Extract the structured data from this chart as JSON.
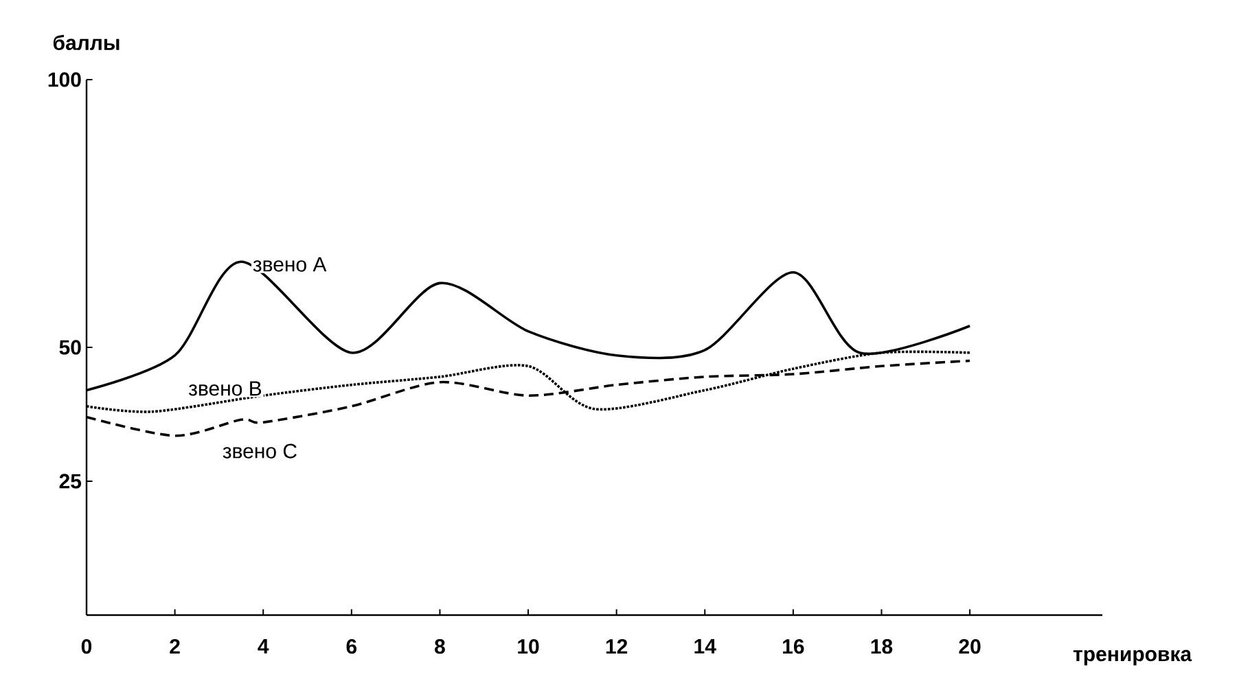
{
  "chart_data": {
    "type": "line",
    "xlabel": "тренировка",
    "ylabel": "баллы",
    "xlim": [
      0,
      23
    ],
    "xticks": [
      0,
      2,
      4,
      6,
      8,
      10,
      12,
      14,
      16,
      18,
      20
    ],
    "ylim": [
      0,
      100
    ],
    "yticks": [
      25,
      50,
      100
    ],
    "grid": false,
    "legend": false,
    "marker": "none",
    "series": [
      {
        "name": "звено A",
        "color": "#000000",
        "line_style": "solid",
        "x": [
          0,
          2,
          3.5,
          6,
          8,
          10,
          12,
          14,
          16,
          17.5,
          20
        ],
        "values": [
          42,
          48.5,
          66,
          49,
          62,
          53,
          48.5,
          49.5,
          64,
          49,
          54
        ]
      },
      {
        "name": "звено B",
        "color": "#000000",
        "line_style": "dotted",
        "x": [
          0,
          1.5,
          4,
          6,
          8,
          10,
          11.5,
          14,
          16,
          18,
          20
        ],
        "values": [
          39,
          38,
          41,
          43,
          44.5,
          46.5,
          38.5,
          42,
          46,
          49,
          49
        ]
      },
      {
        "name": "звено C",
        "color": "#000000",
        "line_style": "dashed",
        "x": [
          0,
          2,
          3.5,
          4,
          6,
          8,
          10,
          12,
          14,
          16,
          18,
          20
        ],
        "values": [
          37,
          33.5,
          36.5,
          36,
          39,
          43.5,
          41,
          43,
          44.5,
          45,
          46.5,
          47.5
        ]
      }
    ]
  }
}
